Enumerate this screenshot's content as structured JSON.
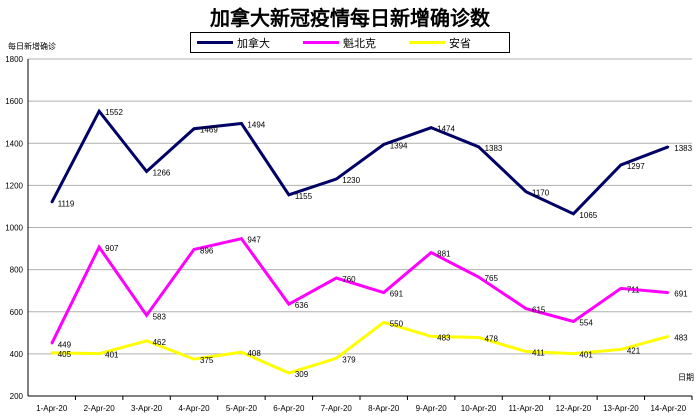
{
  "chart_data": {
    "type": "line",
    "title": "加拿大新冠疫情每日新增确诊数",
    "ylabel": "每日新增确诊",
    "xlabel": "日期",
    "ylim": [
      200,
      1800
    ],
    "yticks": [
      200,
      400,
      600,
      800,
      1000,
      1200,
      1400,
      1600,
      1800
    ],
    "grid": true,
    "legend": "top-center",
    "categories": [
      "1-Apr-20",
      "2-Apr-20",
      "3-Apr-20",
      "4-Apr-20",
      "5-Apr-20",
      "6-Apr-20",
      "7-Apr-20",
      "8-Apr-20",
      "9-Apr-20",
      "10-Apr-20",
      "11-Apr-20",
      "12-Apr-20",
      "13-Apr-20",
      "14-Apr-20"
    ],
    "series": [
      {
        "name": "加拿大",
        "color": "#000066",
        "values": [
          1119,
          1552,
          1266,
          1469,
          1494,
          1155,
          1230,
          1394,
          1474,
          1383,
          1170,
          1065,
          1297,
          1383
        ]
      },
      {
        "name": "魁北克",
        "color": "#ff00ff",
        "values": [
          449,
          907,
          583,
          896,
          947,
          636,
          760,
          691,
          881,
          765,
          615,
          554,
          711,
          691
        ]
      },
      {
        "name": "安省",
        "color": "#ffff00",
        "values": [
          405,
          401,
          462,
          375,
          408,
          309,
          379,
          550,
          483,
          478,
          411,
          401,
          421,
          483
        ]
      }
    ]
  }
}
